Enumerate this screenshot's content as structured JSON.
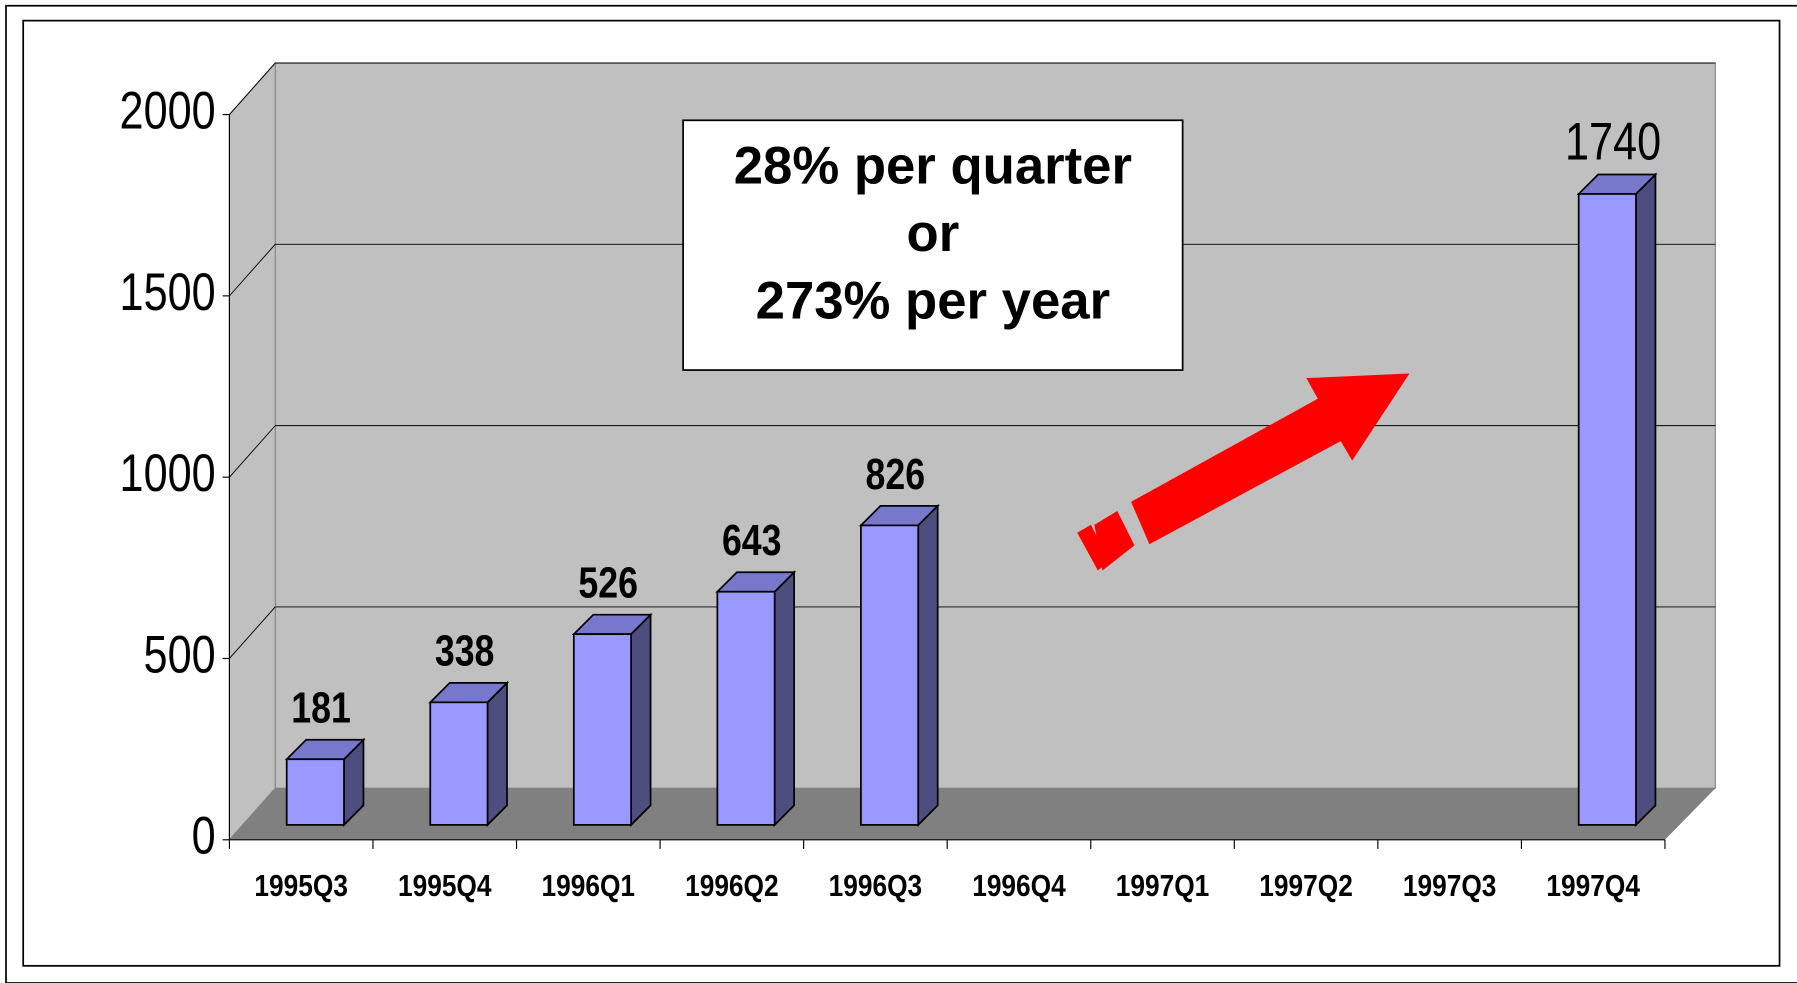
{
  "chart_data": {
    "type": "bar3d",
    "annotation": [
      "28% per quarter",
      "or",
      "273% per year"
    ],
    "categories": [
      "1995Q3",
      "1995Q4",
      "1996Q1",
      "1996Q2",
      "1996Q3",
      "1996Q4",
      "1997Q1",
      "1997Q2",
      "1997Q3",
      "1997Q4"
    ],
    "values": [
      181,
      338,
      526,
      643,
      826,
      null,
      null,
      null,
      null,
      1740
    ],
    "color": "#9999ff",
    "ylim": [
      0,
      2000
    ],
    "yticks": [
      0,
      500,
      1000,
      1500,
      2000
    ],
    "grid": true
  }
}
